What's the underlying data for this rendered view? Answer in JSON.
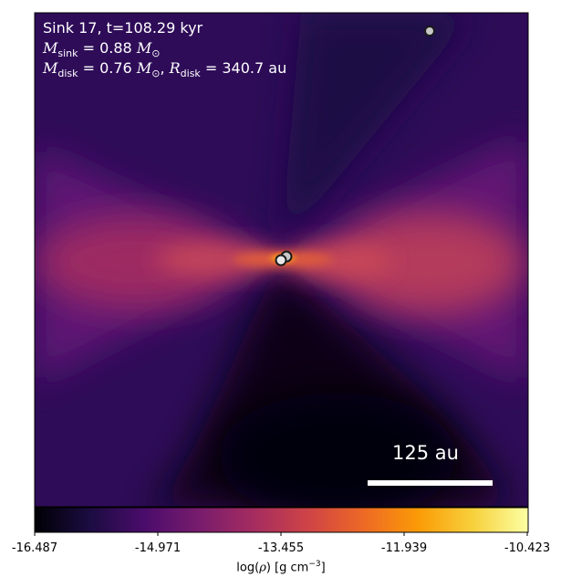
{
  "overlay": {
    "title": "Sink 17, t=108.29 kyr",
    "sink_mass": {
      "symbol": "M",
      "sub": "sink",
      "eq": " = 0.88 ",
      "unit_symbol": "M",
      "unit_sub": "⊙"
    },
    "disk_line": {
      "m_symbol": "M",
      "m_sub": "disk",
      "m_eq": " = 0.76 ",
      "m_unit": "M",
      "m_unit_sub": "⊙",
      "sep": ", ",
      "r_symbol": "R",
      "r_sub": "disk",
      "r_eq": " = 340.7 au"
    }
  },
  "scale_bar": {
    "label": "125 au"
  },
  "colorbar": {
    "ticks": [
      "-16.487",
      "-14.971",
      "-13.455",
      "-11.939",
      "-10.423"
    ],
    "label_prefix": "log(",
    "rho": "ρ",
    "label_mid": ") [g cm",
    "label_sup": "−3",
    "label_suffix": "]",
    "colormap": [
      "#000004",
      "#1b0c41",
      "#4a0c6b",
      "#781c6d",
      "#a52c60",
      "#cf4446",
      "#ed6925",
      "#fb9b06",
      "#f7d13d",
      "#fcffa4"
    ]
  },
  "colors": {
    "background_dark": "#2c0c56",
    "lobe": "#b63c5c",
    "core": "#f59a1a"
  }
}
